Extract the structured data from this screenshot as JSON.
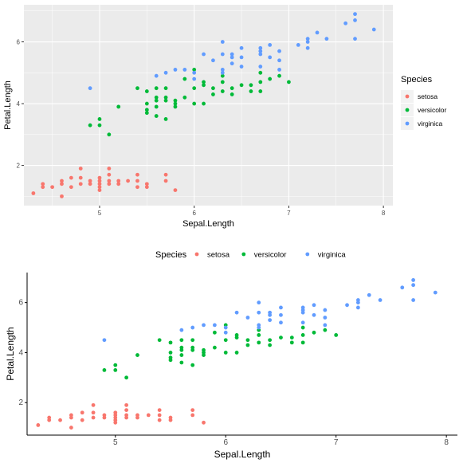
{
  "colors": {
    "setosa": "#F8766D",
    "versicolor": "#00BA38",
    "virginica": "#619CFF",
    "panel_bg": "#EBEBEB",
    "grid": "#FFFFFF",
    "axis_text": "#4D4D4D",
    "title_text": "#000000"
  },
  "chart_data": [
    {
      "type": "scatter",
      "theme": "ggplot-grey",
      "xlabel": "Sepal.Length",
      "ylabel": "Petal.Length",
      "xlim": [
        4.2,
        8.1
      ],
      "ylim": [
        0.7,
        7.2
      ],
      "x_ticks": [
        "5",
        "6",
        "7",
        "8"
      ],
      "y_ticks": [
        "2",
        "4",
        "6"
      ],
      "x_tick_values": [
        5,
        6,
        7,
        8
      ],
      "y_tick_values": [
        2,
        4,
        6
      ],
      "grid": true,
      "legend": {
        "title": "Species",
        "placement": "right",
        "entries": [
          "setosa",
          "versicolor",
          "virginica"
        ]
      },
      "series": [
        {
          "name": "setosa",
          "color": "#F8766D",
          "points": [
            [
              4.3,
              1.1
            ],
            [
              4.4,
              1.3
            ],
            [
              4.4,
              1.4
            ],
            [
              4.5,
              1.3
            ],
            [
              4.6,
              1.0
            ],
            [
              4.6,
              1.4
            ],
            [
              4.6,
              1.5
            ],
            [
              4.7,
              1.3
            ],
            [
              4.7,
              1.6
            ],
            [
              4.8,
              1.4
            ],
            [
              4.8,
              1.6
            ],
            [
              4.8,
              1.9
            ],
            [
              4.9,
              1.4
            ],
            [
              4.9,
              1.5
            ],
            [
              5.0,
              1.2
            ],
            [
              5.0,
              1.3
            ],
            [
              5.0,
              1.4
            ],
            [
              5.0,
              1.5
            ],
            [
              5.0,
              1.6
            ],
            [
              5.1,
              1.4
            ],
            [
              5.1,
              1.5
            ],
            [
              5.1,
              1.7
            ],
            [
              5.1,
              1.9
            ],
            [
              5.2,
              1.4
            ],
            [
              5.2,
              1.5
            ],
            [
              5.3,
              1.5
            ],
            [
              5.4,
              1.3
            ],
            [
              5.4,
              1.5
            ],
            [
              5.4,
              1.7
            ],
            [
              5.5,
              1.3
            ],
            [
              5.5,
              1.4
            ],
            [
              5.7,
              1.5
            ],
            [
              5.7,
              1.7
            ],
            [
              5.8,
              1.2
            ]
          ]
        },
        {
          "name": "versicolor",
          "color": "#00BA38",
          "points": [
            [
              4.9,
              3.3
            ],
            [
              5.0,
              3.3
            ],
            [
              5.0,
              3.5
            ],
            [
              5.1,
              3.0
            ],
            [
              5.2,
              3.9
            ],
            [
              5.4,
              4.5
            ],
            [
              5.5,
              3.7
            ],
            [
              5.5,
              3.8
            ],
            [
              5.5,
              4.0
            ],
            [
              5.5,
              4.4
            ],
            [
              5.6,
              3.6
            ],
            [
              5.6,
              3.9
            ],
            [
              5.6,
              4.1
            ],
            [
              5.6,
              4.2
            ],
            [
              5.6,
              4.5
            ],
            [
              5.7,
              3.5
            ],
            [
              5.7,
              4.1
            ],
            [
              5.7,
              4.2
            ],
            [
              5.7,
              4.5
            ],
            [
              5.8,
              3.9
            ],
            [
              5.8,
              4.0
            ],
            [
              5.8,
              4.1
            ],
            [
              5.9,
              4.2
            ],
            [
              5.9,
              4.8
            ],
            [
              6.0,
              4.0
            ],
            [
              6.0,
              4.5
            ],
            [
              6.0,
              5.1
            ],
            [
              6.1,
              4.0
            ],
            [
              6.1,
              4.6
            ],
            [
              6.1,
              4.7
            ],
            [
              6.2,
              4.3
            ],
            [
              6.2,
              4.5
            ],
            [
              6.3,
              4.4
            ],
            [
              6.3,
              4.7
            ],
            [
              6.3,
              4.9
            ],
            [
              6.4,
              4.3
            ],
            [
              6.4,
              4.5
            ],
            [
              6.5,
              4.6
            ],
            [
              6.6,
              4.4
            ],
            [
              6.6,
              4.6
            ],
            [
              6.7,
              4.4
            ],
            [
              6.7,
              4.7
            ],
            [
              6.7,
              5.0
            ],
            [
              6.8,
              4.8
            ],
            [
              6.9,
              4.9
            ],
            [
              7.0,
              4.7
            ]
          ]
        },
        {
          "name": "virginica",
          "color": "#619CFF",
          "points": [
            [
              4.9,
              4.5
            ],
            [
              5.6,
              4.9
            ],
            [
              5.7,
              5.0
            ],
            [
              5.8,
              5.1
            ],
            [
              5.9,
              5.1
            ],
            [
              6.0,
              4.8
            ],
            [
              6.0,
              5.0
            ],
            [
              6.1,
              5.6
            ],
            [
              6.2,
              5.4
            ],
            [
              6.3,
              5.0
            ],
            [
              6.3,
              5.1
            ],
            [
              6.3,
              5.6
            ],
            [
              6.3,
              6.0
            ],
            [
              6.4,
              5.3
            ],
            [
              6.4,
              5.5
            ],
            [
              6.4,
              5.6
            ],
            [
              6.5,
              5.2
            ],
            [
              6.5,
              5.5
            ],
            [
              6.5,
              5.8
            ],
            [
              6.7,
              5.2
            ],
            [
              6.7,
              5.6
            ],
            [
              6.7,
              5.7
            ],
            [
              6.7,
              5.8
            ],
            [
              6.8,
              5.5
            ],
            [
              6.8,
              5.9
            ],
            [
              6.9,
              5.1
            ],
            [
              6.9,
              5.4
            ],
            [
              6.9,
              5.7
            ],
            [
              7.1,
              5.9
            ],
            [
              7.2,
              5.8
            ],
            [
              7.2,
              6.0
            ],
            [
              7.2,
              6.1
            ],
            [
              7.3,
              6.3
            ],
            [
              7.4,
              6.1
            ],
            [
              7.6,
              6.6
            ],
            [
              7.7,
              6.1
            ],
            [
              7.7,
              6.7
            ],
            [
              7.7,
              6.9
            ],
            [
              7.9,
              6.4
            ]
          ]
        }
      ]
    },
    {
      "type": "scatter",
      "theme": "classic",
      "xlabel": "Sepal.Length",
      "ylabel": "Petal.Length",
      "xlim": [
        4.2,
        8.1
      ],
      "ylim": [
        0.7,
        7.2
      ],
      "x_ticks": [
        "5",
        "6",
        "7",
        "8"
      ],
      "y_ticks": [
        "2",
        "4",
        "6"
      ],
      "x_tick_values": [
        5,
        6,
        7,
        8
      ],
      "y_tick_values": [
        2,
        4,
        6
      ],
      "grid": false,
      "legend": {
        "title": "Species",
        "placement": "top",
        "entries": [
          "setosa",
          "versicolor",
          "virginica"
        ]
      },
      "series": [
        {
          "name": "setosa",
          "color": "#F8766D",
          "points": [
            [
              4.3,
              1.1
            ],
            [
              4.4,
              1.3
            ],
            [
              4.4,
              1.4
            ],
            [
              4.5,
              1.3
            ],
            [
              4.6,
              1.0
            ],
            [
              4.6,
              1.4
            ],
            [
              4.6,
              1.5
            ],
            [
              4.7,
              1.3
            ],
            [
              4.7,
              1.6
            ],
            [
              4.8,
              1.4
            ],
            [
              4.8,
              1.6
            ],
            [
              4.8,
              1.9
            ],
            [
              4.9,
              1.4
            ],
            [
              4.9,
              1.5
            ],
            [
              5.0,
              1.2
            ],
            [
              5.0,
              1.3
            ],
            [
              5.0,
              1.4
            ],
            [
              5.0,
              1.5
            ],
            [
              5.0,
              1.6
            ],
            [
              5.1,
              1.4
            ],
            [
              5.1,
              1.5
            ],
            [
              5.1,
              1.7
            ],
            [
              5.1,
              1.9
            ],
            [
              5.2,
              1.4
            ],
            [
              5.2,
              1.5
            ],
            [
              5.3,
              1.5
            ],
            [
              5.4,
              1.3
            ],
            [
              5.4,
              1.5
            ],
            [
              5.4,
              1.7
            ],
            [
              5.5,
              1.3
            ],
            [
              5.5,
              1.4
            ],
            [
              5.7,
              1.5
            ],
            [
              5.7,
              1.7
            ],
            [
              5.8,
              1.2
            ]
          ]
        },
        {
          "name": "versicolor",
          "color": "#00BA38",
          "points": [
            [
              4.9,
              3.3
            ],
            [
              5.0,
              3.3
            ],
            [
              5.0,
              3.5
            ],
            [
              5.1,
              3.0
            ],
            [
              5.2,
              3.9
            ],
            [
              5.4,
              4.5
            ],
            [
              5.5,
              3.7
            ],
            [
              5.5,
              3.8
            ],
            [
              5.5,
              4.0
            ],
            [
              5.5,
              4.4
            ],
            [
              5.6,
              3.6
            ],
            [
              5.6,
              3.9
            ],
            [
              5.6,
              4.1
            ],
            [
              5.6,
              4.2
            ],
            [
              5.6,
              4.5
            ],
            [
              5.7,
              3.5
            ],
            [
              5.7,
              4.1
            ],
            [
              5.7,
              4.2
            ],
            [
              5.7,
              4.5
            ],
            [
              5.8,
              3.9
            ],
            [
              5.8,
              4.0
            ],
            [
              5.8,
              4.1
            ],
            [
              5.9,
              4.2
            ],
            [
              5.9,
              4.8
            ],
            [
              6.0,
              4.0
            ],
            [
              6.0,
              4.5
            ],
            [
              6.0,
              5.1
            ],
            [
              6.1,
              4.0
            ],
            [
              6.1,
              4.6
            ],
            [
              6.1,
              4.7
            ],
            [
              6.2,
              4.3
            ],
            [
              6.2,
              4.5
            ],
            [
              6.3,
              4.4
            ],
            [
              6.3,
              4.7
            ],
            [
              6.3,
              4.9
            ],
            [
              6.4,
              4.3
            ],
            [
              6.4,
              4.5
            ],
            [
              6.5,
              4.6
            ],
            [
              6.6,
              4.4
            ],
            [
              6.6,
              4.6
            ],
            [
              6.7,
              4.4
            ],
            [
              6.7,
              4.7
            ],
            [
              6.7,
              5.0
            ],
            [
              6.8,
              4.8
            ],
            [
              6.9,
              4.9
            ],
            [
              7.0,
              4.7
            ]
          ]
        },
        {
          "name": "virginica",
          "color": "#619CFF",
          "points": [
            [
              4.9,
              4.5
            ],
            [
              5.6,
              4.9
            ],
            [
              5.7,
              5.0
            ],
            [
              5.8,
              5.1
            ],
            [
              5.9,
              5.1
            ],
            [
              6.0,
              4.8
            ],
            [
              6.0,
              5.0
            ],
            [
              6.1,
              5.6
            ],
            [
              6.2,
              5.4
            ],
            [
              6.3,
              5.0
            ],
            [
              6.3,
              5.1
            ],
            [
              6.3,
              5.6
            ],
            [
              6.3,
              6.0
            ],
            [
              6.4,
              5.3
            ],
            [
              6.4,
              5.5
            ],
            [
              6.4,
              5.6
            ],
            [
              6.5,
              5.2
            ],
            [
              6.5,
              5.5
            ],
            [
              6.5,
              5.8
            ],
            [
              6.7,
              5.2
            ],
            [
              6.7,
              5.6
            ],
            [
              6.7,
              5.7
            ],
            [
              6.7,
              5.8
            ],
            [
              6.8,
              5.5
            ],
            [
              6.8,
              5.9
            ],
            [
              6.9,
              5.1
            ],
            [
              6.9,
              5.4
            ],
            [
              6.9,
              5.7
            ],
            [
              7.1,
              5.9
            ],
            [
              7.2,
              5.8
            ],
            [
              7.2,
              6.0
            ],
            [
              7.2,
              6.1
            ],
            [
              7.3,
              6.3
            ],
            [
              7.4,
              6.1
            ],
            [
              7.6,
              6.6
            ],
            [
              7.7,
              6.1
            ],
            [
              7.7,
              6.7
            ],
            [
              7.7,
              6.9
            ],
            [
              7.9,
              6.4
            ]
          ]
        }
      ]
    }
  ]
}
